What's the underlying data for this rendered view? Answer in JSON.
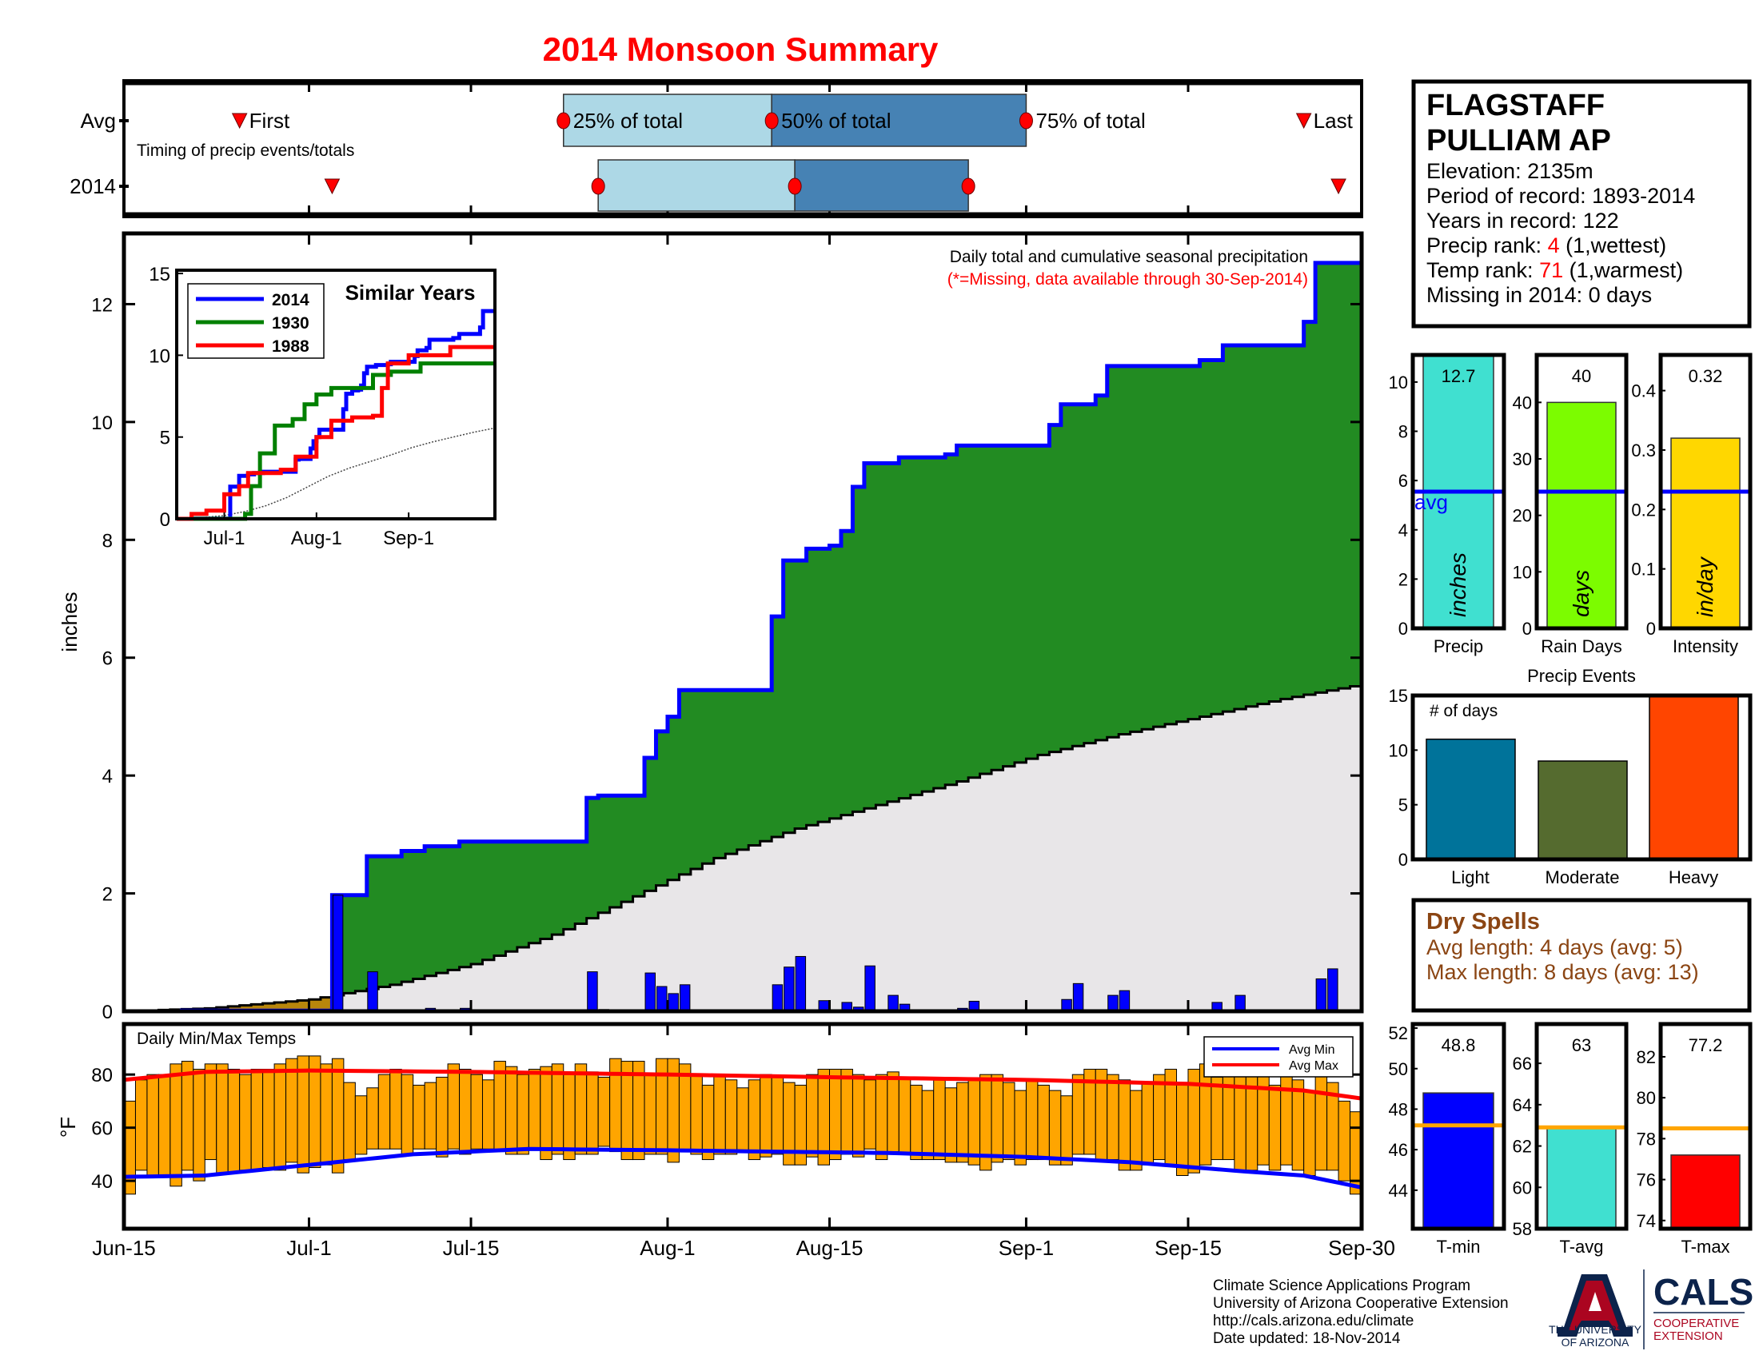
{
  "title": "2014 Monsoon Summary",
  "colors": {
    "title": "#ff0000",
    "green": "#228b22",
    "brown": "#b8860b",
    "grey": "#e8e6e8",
    "blue": "#0000ff",
    "temp_bar": "#ffa500",
    "dry": "#8b4513"
  },
  "station": {
    "name1": "FLAGSTAFF",
    "name2": "PULLIAM AP",
    "elevation": "Elevation: 2135m",
    "period": "Period of record: 1893-2014",
    "years": "Years in record: 122",
    "precip_rank_label": "Precip rank: ",
    "precip_rank": "4",
    "precip_rank_note": " (1,wettest)",
    "temp_rank_label": "Temp rank: ",
    "temp_rank": "71",
    "temp_rank_note": " (1,warmest)",
    "missing": "Missing in 2014: 0 days"
  },
  "dry_spells": {
    "title": "Dry Spells",
    "avg_length": "Avg length: 4 days (avg: 5)",
    "max_length": "Max length: 8 days (avg: 13)"
  },
  "footer": {
    "lines": [
      "Climate Science Applications Program",
      "University of Arizona Cooperative Extension",
      "http://cals.arizona.edu/climate",
      " Date updated: 18-Nov-2014"
    ],
    "logo_ua_line1": "THE UNIVERSITY",
    "logo_ua_line2": "OF ARIZONA",
    "logo_cals": "CALS",
    "logo_coop1": "COOPERATIVE",
    "logo_coop2": "EXTENSION"
  },
  "x_axis": {
    "ticks": [
      "Jun-15",
      "Jul-1",
      "Jul-15",
      "Aug-1",
      "Aug-15",
      "Sep-1",
      "Sep-15",
      "Sep-30"
    ]
  },
  "chart_data": [
    {
      "type": "timeline",
      "rows": [
        "Avg",
        "2014"
      ],
      "subtitle": "Timing of precip events/totals",
      "labels": {
        "first": "First",
        "p25": "25% of total",
        "p50": "50% of total",
        "p75": "75% of total",
        "last": "Last"
      },
      "avg": {
        "first": "Jun-25",
        "p25": "Jul-23",
        "p50": "Aug-10",
        "p75": "Sep-01",
        "last": "Sep-25"
      },
      "y2014": {
        "first": "Jul-03",
        "p25": "Jul-26",
        "p50": "Aug-12",
        "p75": "Aug-27",
        "last": "Sep-28"
      },
      "colors": {
        "q1": "#add8e6",
        "q2": "#4682b4",
        "marker": "#ff0000"
      }
    },
    {
      "type": "area",
      "title": "Daily total and cumulative seasonal precipitation",
      "note": "(*=Missing, data available through 30-Sep-2014)",
      "ylabel": "inches",
      "xlim": [
        "Jun-15",
        "Sep-30"
      ],
      "ylim": [
        0,
        13.2
      ],
      "yticks": [
        0,
        2,
        4,
        6,
        8,
        10,
        12
      ],
      "cumulative_2014": [
        [
          "Jun-15",
          0
        ],
        [
          "Jun-20",
          0.01
        ],
        [
          "Jul-03",
          1.97
        ],
        [
          "Jul-06",
          2.63
        ],
        [
          "Jul-09",
          2.72
        ],
        [
          "Jul-11",
          2.8
        ],
        [
          "Jul-14",
          2.88
        ],
        [
          "Jul-25",
          3.62
        ],
        [
          "Jul-26",
          3.66
        ],
        [
          "Jul-30",
          4.3
        ],
        [
          "Jul-31",
          4.75
        ],
        [
          "Aug-01",
          5.0
        ],
        [
          "Aug-02",
          5.45
        ],
        [
          "Aug-10",
          6.7
        ],
        [
          "Aug-11",
          7.65
        ],
        [
          "Aug-13",
          7.85
        ],
        [
          "Aug-15",
          7.9
        ],
        [
          "Aug-16",
          8.15
        ],
        [
          "Aug-17",
          8.9
        ],
        [
          "Aug-18",
          9.3
        ],
        [
          "Aug-21",
          9.4
        ],
        [
          "Aug-25",
          9.45
        ],
        [
          "Aug-26",
          9.6
        ],
        [
          "Sep-03",
          9.95
        ],
        [
          "Sep-04",
          10.3
        ],
        [
          "Sep-07",
          10.45
        ],
        [
          "Sep-08",
          10.95
        ],
        [
          "Sep-16",
          11.05
        ],
        [
          "Sep-18",
          11.3
        ],
        [
          "Sep-25",
          11.7
        ],
        [
          "Sep-26",
          12.7
        ]
      ],
      "cumulative_avg": [
        [
          "Jun-15",
          0
        ],
        [
          "Jun-22",
          0.05
        ],
        [
          "Jul-01",
          0.2
        ],
        [
          "Jul-08",
          0.45
        ],
        [
          "Jul-15",
          0.8
        ],
        [
          "Jul-22",
          1.3
        ],
        [
          "Jul-29",
          1.95
        ],
        [
          "Aug-05",
          2.6
        ],
        [
          "Aug-12",
          3.1
        ],
        [
          "Aug-19",
          3.5
        ],
        [
          "Aug-26",
          3.9
        ],
        [
          "Sep-02",
          4.35
        ],
        [
          "Sep-09",
          4.7
        ],
        [
          "Sep-16",
          5.0
        ],
        [
          "Sep-23",
          5.3
        ],
        [
          "Sep-30",
          5.55
        ]
      ],
      "daily_2014": [
        [
          "Jul-03",
          1.97
        ],
        [
          "Jul-06",
          0.67
        ],
        [
          "Jul-11",
          0.05
        ],
        [
          "Jul-14",
          0.05
        ],
        [
          "Jul-25",
          0.67
        ],
        [
          "Jul-26",
          0.03
        ],
        [
          "Jul-30",
          0.65
        ],
        [
          "Jul-31",
          0.42
        ],
        [
          "Aug-01",
          0.3
        ],
        [
          "Aug-02",
          0.45
        ],
        [
          "Aug-10",
          0.45
        ],
        [
          "Aug-11",
          0.75
        ],
        [
          "Aug-12",
          0.93
        ],
        [
          "Aug-14",
          0.18
        ],
        [
          "Aug-16",
          0.15
        ],
        [
          "Aug-17",
          0.07
        ],
        [
          "Aug-18",
          0.77
        ],
        [
          "Aug-20",
          0.27
        ],
        [
          "Aug-21",
          0.12
        ],
        [
          "Aug-26",
          0.05
        ],
        [
          "Aug-27",
          0.17
        ],
        [
          "Sep-04",
          0.2
        ],
        [
          "Sep-05",
          0.47
        ],
        [
          "Sep-08",
          0.27
        ],
        [
          "Sep-09",
          0.35
        ],
        [
          "Sep-17",
          0.15
        ],
        [
          "Sep-19",
          0.27
        ],
        [
          "Sep-26",
          0.55
        ],
        [
          "Sep-27",
          0.72
        ]
      ]
    },
    {
      "type": "line",
      "title": "Similar Years",
      "ylim": [
        0,
        15.2
      ],
      "yticks": [
        0,
        5,
        10,
        15
      ],
      "xticks": [
        "Jul-1",
        "Aug-1",
        "Sep-1"
      ],
      "series": [
        {
          "name": "2014",
          "color": "#0000ff",
          "values": [
            [
              "Jun-15",
              0
            ],
            [
              "Jun-20",
              0.01
            ],
            [
              "Jul-03",
              1.97
            ],
            [
              "Jul-06",
              2.63
            ],
            [
              "Jul-09",
              2.72
            ],
            [
              "Jul-11",
              2.8
            ],
            [
              "Jul-14",
              2.88
            ],
            [
              "Jul-25",
              3.62
            ],
            [
              "Jul-26",
              3.66
            ],
            [
              "Jul-30",
              4.3
            ],
            [
              "Jul-31",
              4.75
            ],
            [
              "Aug-01",
              5.0
            ],
            [
              "Aug-02",
              5.45
            ],
            [
              "Aug-10",
              6.7
            ],
            [
              "Aug-11",
              7.65
            ],
            [
              "Aug-13",
              7.85
            ],
            [
              "Aug-15",
              7.9
            ],
            [
              "Aug-16",
              8.15
            ],
            [
              "Aug-17",
              8.9
            ],
            [
              "Aug-18",
              9.3
            ],
            [
              "Aug-21",
              9.4
            ],
            [
              "Aug-25",
              9.45
            ],
            [
              "Aug-26",
              9.6
            ],
            [
              "Sep-03",
              9.95
            ],
            [
              "Sep-04",
              10.3
            ],
            [
              "Sep-07",
              10.45
            ],
            [
              "Sep-08",
              10.95
            ],
            [
              "Sep-16",
              11.05
            ],
            [
              "Sep-18",
              11.3
            ],
            [
              "Sep-25",
              11.7
            ],
            [
              "Sep-26",
              12.7
            ]
          ]
        },
        {
          "name": "1930",
          "color": "#008000",
          "values": [
            [
              "Jun-15",
              0
            ],
            [
              "Jul-08",
              0.3
            ],
            [
              "Jul-10",
              2.0
            ],
            [
              "Jul-13",
              4.0
            ],
            [
              "Jul-18",
              5.7
            ],
            [
              "Jul-24",
              6.1
            ],
            [
              "Jul-28",
              7.0
            ],
            [
              "Aug-01",
              7.6
            ],
            [
              "Aug-06",
              8.0
            ],
            [
              "Aug-20",
              8.8
            ],
            [
              "Aug-26",
              9.0
            ],
            [
              "Sep-05",
              9.5
            ],
            [
              "Sep-30",
              10.5
            ]
          ]
        },
        {
          "name": "1988",
          "color": "#ff0000",
          "values": [
            [
              "Jun-15",
              0
            ],
            [
              "Jun-20",
              0.3
            ],
            [
              "Jun-25",
              0.5
            ],
            [
              "Jul-01",
              1.5
            ],
            [
              "Jul-06",
              2.0
            ],
            [
              "Jul-09",
              2.8
            ],
            [
              "Jul-20",
              3.0
            ],
            [
              "Jul-25",
              3.8
            ],
            [
              "Aug-01",
              5.0
            ],
            [
              "Aug-06",
              6.0
            ],
            [
              "Aug-13",
              6.2
            ],
            [
              "Aug-20",
              6.3
            ],
            [
              "Aug-23",
              8.0
            ],
            [
              "Aug-25",
              9.5
            ],
            [
              "Sep-01",
              10.0
            ],
            [
              "Sep-15",
              10.5
            ],
            [
              "Sep-30",
              10.4
            ]
          ]
        }
      ]
    },
    {
      "type": "bar",
      "title": "Daily Min/Max Temps",
      "ylabel": "°F",
      "ylim": [
        22,
        99
      ],
      "yticks": [
        40,
        60,
        80
      ],
      "legend": [
        "Avg Min",
        "Avg Max"
      ],
      "start": "Jun-15",
      "daily_max": [
        70,
        78,
        80,
        80,
        84,
        85,
        82,
        84,
        84,
        82,
        80,
        82,
        82,
        84,
        86,
        87,
        87,
        84,
        86,
        77,
        72,
        75,
        80,
        82,
        80,
        76,
        77,
        79,
        84,
        82,
        80,
        78,
        85,
        83,
        80,
        82,
        83,
        84,
        80,
        84,
        81,
        79,
        86,
        85,
        85,
        80,
        86,
        86,
        84,
        80,
        76,
        80,
        78,
        75,
        78,
        80,
        79,
        77,
        76,
        80,
        82,
        82,
        82,
        80,
        78,
        80,
        81,
        79,
        76,
        74,
        78,
        75,
        77,
        78,
        80,
        80,
        77,
        74,
        78,
        76,
        74,
        72,
        80,
        82,
        82,
        80,
        78,
        74,
        77,
        80,
        82,
        76,
        82,
        84,
        79,
        81,
        80,
        82,
        80,
        76,
        82,
        78,
        74,
        82,
        77,
        70,
        66,
        70
      ],
      "daily_min": [
        35,
        44,
        42,
        42,
        38,
        44,
        40,
        48,
        43,
        43,
        44,
        44,
        45,
        44,
        47,
        43,
        45,
        46,
        43,
        48,
        50,
        52,
        52,
        52,
        50,
        52,
        52,
        49,
        52,
        50,
        52,
        52,
        51,
        50,
        50,
        52,
        48,
        50,
        48,
        50,
        50,
        53,
        51,
        48,
        48,
        50,
        50,
        47,
        51,
        50,
        48,
        50,
        50,
        51,
        48,
        49,
        50,
        46,
        46,
        49,
        46,
        48,
        50,
        49,
        52,
        48,
        51,
        50,
        48,
        48,
        48,
        47,
        47,
        46,
        44,
        47,
        48,
        46,
        48,
        48,
        46,
        46,
        50,
        50,
        48,
        48,
        44,
        44,
        46,
        48,
        46,
        42,
        43,
        46,
        48,
        48,
        44,
        44,
        46,
        44,
        46,
        44,
        42,
        44,
        44,
        40,
        35,
        33
      ],
      "avg_min": [
        [
          "Jun-15",
          41.5
        ],
        [
          "Jun-22",
          42
        ],
        [
          "Jul-01",
          46
        ],
        [
          "Jul-10",
          50
        ],
        [
          "Jul-20",
          52
        ],
        [
          "Aug-01",
          51.5
        ],
        [
          "Aug-10",
          51
        ],
        [
          "Aug-20",
          50.5
        ],
        [
          "Sep-01",
          49
        ],
        [
          "Sep-10",
          47
        ],
        [
          "Sep-20",
          43.5
        ],
        [
          "Sep-25",
          42
        ],
        [
          "Sep-30",
          37.5
        ]
      ],
      "avg_max": [
        [
          "Jun-15",
          78
        ],
        [
          "Jun-22",
          81
        ],
        [
          "Jul-01",
          81.5
        ],
        [
          "Jul-15",
          81
        ],
        [
          "Aug-01",
          80
        ],
        [
          "Aug-15",
          79
        ],
        [
          "Sep-01",
          78
        ],
        [
          "Sep-15",
          76.5
        ],
        [
          "Sep-25",
          74
        ],
        [
          "Sep-30",
          71
        ]
      ]
    },
    {
      "type": "bar",
      "label": "Precip",
      "value": 12.7,
      "value_label": "12.7",
      "avg": 5.55,
      "avg_label": "avg",
      "ylim": [
        0,
        11.1
      ],
      "yticks": [
        0,
        2,
        4,
        6,
        8,
        10
      ],
      "unit": "inches",
      "color": "#40e0d0"
    },
    {
      "type": "bar",
      "label": "Rain Days",
      "value": 40,
      "value_label": "40",
      "avg": 24.2,
      "ylim": [
        0,
        48.4
      ],
      "yticks": [
        0,
        10,
        20,
        30,
        40
      ],
      "unit": "days",
      "color": "#7cfc00"
    },
    {
      "type": "bar",
      "label": "Intensity",
      "value": 0.32,
      "value_label": "0.32",
      "avg": 0.23,
      "ylim": [
        0,
        0.46
      ],
      "yticks": [
        0,
        0.1,
        0.2,
        0.3,
        0.4
      ],
      "unit": "in/day",
      "color": "#ffd700"
    },
    {
      "type": "bar",
      "title": "Precip Events",
      "ylabel": "# of days",
      "categories": [
        "Light",
        "Moderate",
        "Heavy"
      ],
      "values": [
        11,
        9,
        15
      ],
      "colors": [
        "#00739a",
        "#556b2f",
        "#ff4500"
      ],
      "ylim": [
        0,
        15
      ],
      "yticks": [
        0,
        5,
        10,
        15
      ]
    },
    {
      "type": "bar",
      "label": "T-min",
      "value": 48.8,
      "value_label": "48.8",
      "avg": 47.2,
      "ylim": [
        42.1,
        52.2
      ],
      "yticks": [
        44,
        46,
        48,
        50,
        52
      ],
      "color": "#0000ff"
    },
    {
      "type": "bar",
      "label": "T-avg",
      "value": 62.9,
      "value_label": "63",
      "avg": 62.9,
      "ylim": [
        58,
        67.9
      ],
      "yticks": [
        58,
        60,
        62,
        64,
        66
      ],
      "color": "#40e0d0"
    },
    {
      "type": "bar",
      "label": "T-max",
      "value": 77.2,
      "value_label": "77.2",
      "avg": 78.5,
      "ylim": [
        73.6,
        83.6
      ],
      "yticks": [
        74,
        76,
        78,
        80,
        82
      ],
      "color": "#ff0000"
    }
  ]
}
